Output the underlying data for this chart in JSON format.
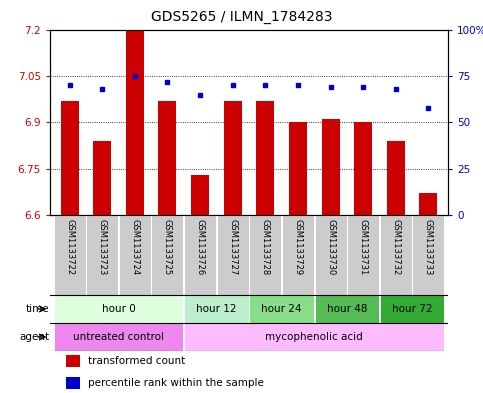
{
  "title": "GDS5265 / ILMN_1784283",
  "samples": [
    "GSM1133722",
    "GSM1133723",
    "GSM1133724",
    "GSM1133725",
    "GSM1133726",
    "GSM1133727",
    "GSM1133728",
    "GSM1133729",
    "GSM1133730",
    "GSM1133731",
    "GSM1133732",
    "GSM1133733"
  ],
  "bar_values": [
    6.97,
    6.84,
    7.22,
    6.97,
    6.73,
    6.97,
    6.97,
    6.9,
    6.91,
    6.9,
    6.84,
    6.67
  ],
  "dot_values": [
    70,
    68,
    75,
    72,
    65,
    70,
    70,
    70,
    69,
    69,
    68,
    58
  ],
  "bar_baseline": 6.6,
  "ylim": [
    6.6,
    7.2
  ],
  "y_ticks": [
    6.6,
    6.75,
    6.9,
    7.05,
    7.2
  ],
  "y_tick_labels": [
    "6.6",
    "6.75",
    "6.9",
    "7.05",
    "7.2"
  ],
  "right_ylim": [
    0,
    100
  ],
  "right_yticks": [
    0,
    25,
    50,
    75,
    100
  ],
  "right_yticklabels": [
    "0",
    "25",
    "50",
    "75",
    "100%"
  ],
  "bar_color": "#cc0000",
  "dot_color": "#0000cc",
  "bar_width": 0.55,
  "time_groups": [
    {
      "label": "hour 0",
      "start": 0,
      "end": 3,
      "color": "#ddffdd"
    },
    {
      "label": "hour 12",
      "start": 4,
      "end": 5,
      "color": "#bbeecc"
    },
    {
      "label": "hour 24",
      "start": 6,
      "end": 7,
      "color": "#88dd88"
    },
    {
      "label": "hour 48",
      "start": 8,
      "end": 9,
      "color": "#55bb55"
    },
    {
      "label": "hour 72",
      "start": 10,
      "end": 11,
      "color": "#33aa33"
    }
  ],
  "agent_groups": [
    {
      "label": "untreated control",
      "start": 0,
      "end": 3,
      "color": "#ee88ee"
    },
    {
      "label": "mycophenolic acid",
      "start": 4,
      "end": 11,
      "color": "#ffbbff"
    }
  ],
  "time_label": "time",
  "agent_label": "agent",
  "legend_bar_label": "transformed count",
  "legend_dot_label": "percentile rank within the sample",
  "title_fontsize": 10,
  "tick_fontsize": 7.5,
  "sample_fontsize": 6,
  "row_fontsize": 7.5,
  "legend_fontsize": 7.5
}
